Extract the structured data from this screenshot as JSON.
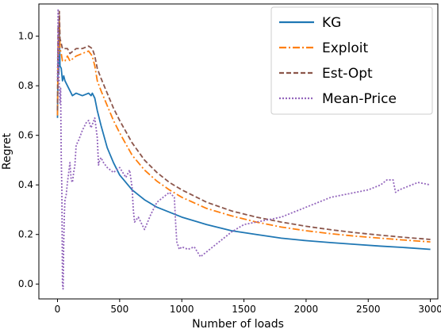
{
  "chart_data": {
    "type": "line",
    "xlabel": "Number of loads",
    "ylabel": "Regret",
    "xlim": [
      -150,
      3060
    ],
    "ylim": [
      -0.06,
      1.13
    ],
    "xticks": [
      0,
      500,
      1000,
      1500,
      2000,
      2500,
      3000
    ],
    "yticks": [
      0.0,
      0.2,
      0.4,
      0.6,
      0.8,
      1.0
    ],
    "xtick_labels": [
      "0",
      "500",
      "1000",
      "1500",
      "2000",
      "2500",
      "3000"
    ],
    "ytick_labels": [
      "0.0",
      "0.2",
      "0.4",
      "0.6",
      "0.8",
      "1.0"
    ],
    "grid": false,
    "legend_position": "top-right",
    "series": [
      {
        "name": "KG",
        "color": "#1f77b4",
        "style": "solid",
        "x": [
          0,
          5,
          10,
          15,
          20,
          30,
          40,
          50,
          60,
          80,
          100,
          120,
          150,
          200,
          250,
          270,
          280,
          300,
          320,
          350,
          400,
          450,
          500,
          600,
          700,
          800,
          900,
          1000,
          1200,
          1400,
          1600,
          1800,
          2000,
          2200,
          2400,
          2600,
          2800,
          3000
        ],
        "y": [
          0.67,
          0.95,
          0.85,
          1.01,
          0.88,
          0.87,
          0.82,
          0.84,
          0.82,
          0.8,
          0.78,
          0.76,
          0.77,
          0.76,
          0.77,
          0.76,
          0.77,
          0.75,
          0.7,
          0.64,
          0.55,
          0.49,
          0.44,
          0.38,
          0.34,
          0.31,
          0.29,
          0.27,
          0.24,
          0.215,
          0.2,
          0.185,
          0.175,
          0.167,
          0.16,
          0.153,
          0.147,
          0.14
        ]
      },
      {
        "name": "Exploit",
        "color": "#ff7f0e",
        "style": "dashdot",
        "x": [
          0,
          5,
          10,
          15,
          20,
          30,
          40,
          60,
          80,
          100,
          150,
          200,
          250,
          280,
          300,
          320,
          350,
          400,
          450,
          500,
          600,
          700,
          800,
          900,
          1000,
          1200,
          1400,
          1600,
          1800,
          2000,
          2200,
          2400,
          2600,
          2800,
          3000
        ],
        "y": [
          0.68,
          1.0,
          0.93,
          1.06,
          0.95,
          0.93,
          0.9,
          0.9,
          0.92,
          0.9,
          0.92,
          0.93,
          0.94,
          0.92,
          0.88,
          0.82,
          0.78,
          0.72,
          0.66,
          0.61,
          0.52,
          0.46,
          0.415,
          0.38,
          0.35,
          0.305,
          0.275,
          0.25,
          0.23,
          0.215,
          0.203,
          0.193,
          0.185,
          0.177,
          0.17
        ]
      },
      {
        "name": "Est-Opt",
        "color": "#8c564b",
        "style": "dashed",
        "x": [
          0,
          5,
          10,
          15,
          20,
          30,
          40,
          60,
          80,
          100,
          150,
          200,
          250,
          280,
          300,
          320,
          350,
          400,
          450,
          500,
          600,
          700,
          800,
          900,
          1000,
          1200,
          1400,
          1600,
          1800,
          2000,
          2200,
          2400,
          2600,
          2800,
          3000
        ],
        "y": [
          0.7,
          1.04,
          0.96,
          1.1,
          0.99,
          0.97,
          0.95,
          0.95,
          0.95,
          0.93,
          0.95,
          0.95,
          0.96,
          0.95,
          0.92,
          0.87,
          0.83,
          0.77,
          0.71,
          0.66,
          0.57,
          0.5,
          0.45,
          0.41,
          0.38,
          0.33,
          0.295,
          0.27,
          0.25,
          0.233,
          0.219,
          0.207,
          0.197,
          0.188,
          0.18
        ]
      },
      {
        "name": "Mean-Price",
        "color": "#9467bd",
        "style": "dotted",
        "x": [
          0,
          5,
          10,
          15,
          20,
          25,
          30,
          35,
          40,
          45,
          50,
          55,
          60,
          70,
          80,
          100,
          110,
          120,
          130,
          140,
          150,
          170,
          200,
          230,
          250,
          270,
          300,
          320,
          330,
          340,
          350,
          360,
          370,
          400,
          450,
          500,
          550,
          580,
          600,
          610,
          620,
          650,
          700,
          750,
          800,
          850,
          900,
          940,
          950,
          960,
          980,
          1000,
          1050,
          1100,
          1150,
          1200,
          1300,
          1400,
          1500,
          1600,
          1700,
          1800,
          1900,
          2000,
          2100,
          2200,
          2300,
          2400,
          2500,
          2600,
          2650,
          2700,
          2720,
          2750,
          2800,
          2900,
          3000
        ],
        "y": [
          0.82,
          1.11,
          0.88,
          0.78,
          0.73,
          0.79,
          0.51,
          0.38,
          0.0,
          -0.02,
          0.17,
          0.28,
          0.34,
          0.36,
          0.41,
          0.49,
          0.42,
          0.41,
          0.45,
          0.48,
          0.56,
          0.58,
          0.62,
          0.65,
          0.66,
          0.63,
          0.67,
          0.59,
          0.48,
          0.5,
          0.51,
          0.5,
          0.49,
          0.47,
          0.45,
          0.47,
          0.43,
          0.46,
          0.39,
          0.3,
          0.25,
          0.27,
          0.22,
          0.28,
          0.33,
          0.35,
          0.37,
          0.35,
          0.25,
          0.17,
          0.14,
          0.15,
          0.14,
          0.15,
          0.11,
          0.13,
          0.17,
          0.21,
          0.24,
          0.25,
          0.26,
          0.27,
          0.29,
          0.31,
          0.33,
          0.35,
          0.36,
          0.37,
          0.38,
          0.4,
          0.42,
          0.42,
          0.37,
          0.38,
          0.39,
          0.41,
          0.4
        ]
      }
    ]
  }
}
